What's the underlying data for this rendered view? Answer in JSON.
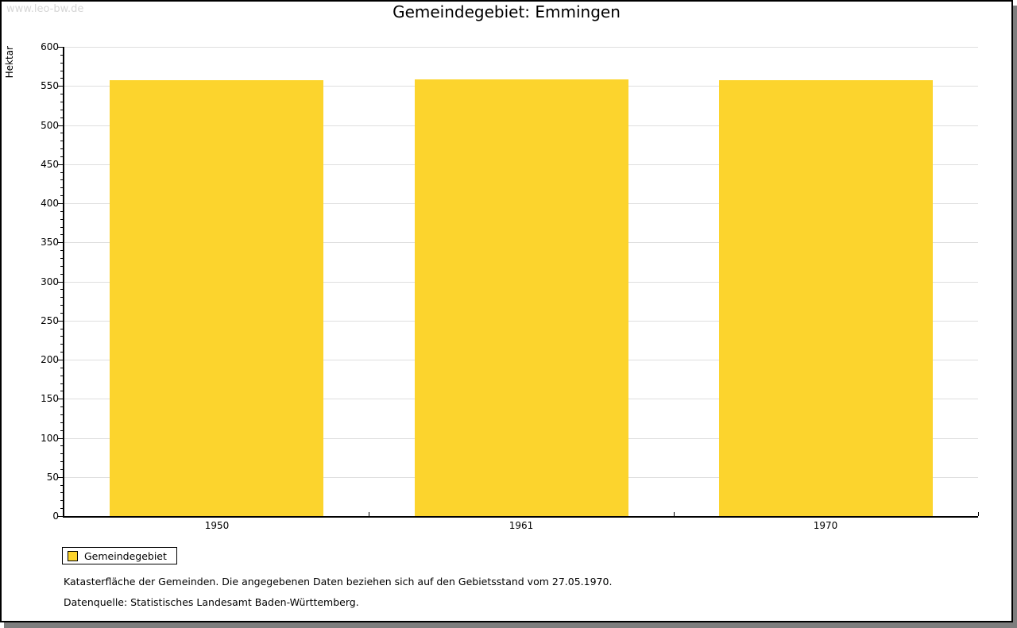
{
  "watermark": "www.leo-bw.de",
  "title": "Gemeindegebiet: Emmingen",
  "chart_data": {
    "type": "bar",
    "title": "Gemeindegebiet: Emmingen",
    "categories": [
      "1950",
      "1961",
      "1970"
    ],
    "series": [
      {
        "name": "Gemeindegebiet",
        "color": "#fcd42d",
        "values": [
          557,
          558,
          557
        ]
      }
    ],
    "xlabel": "",
    "ylabel": "Hektar",
    "ylim": [
      0,
      600
    ],
    "ytick_major": 50,
    "ytick_minor": 10,
    "grid": true,
    "legend_position": "bottom-left",
    "gridline_color": "#dedede"
  },
  "legend": {
    "label": "Gemeindegebiet",
    "swatch_color": "#fcd42d"
  },
  "footnotes": [
    "Katasterfläche der Gemeinden. Die angegebenen Daten beziehen sich auf den Gebietsstand vom 27.05.1970.",
    "Datenquelle: Statistisches Landesamt Baden-Württemberg."
  ]
}
